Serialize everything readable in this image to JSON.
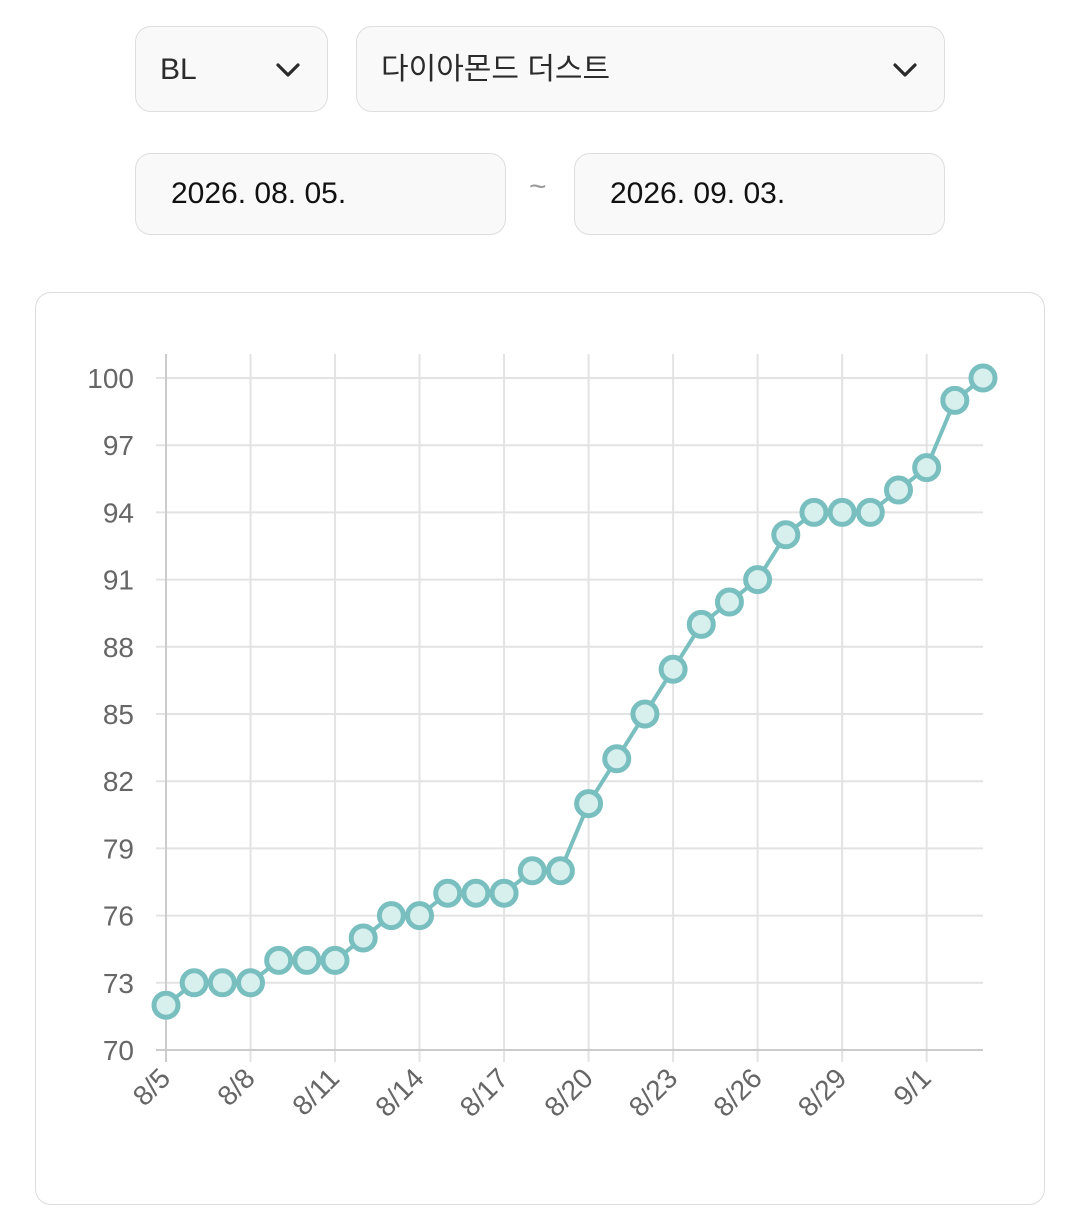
{
  "filters": {
    "category_value": "BL",
    "item_value": "다이아몬드 더스트",
    "start_date": "2026. 08. 05.",
    "end_date": "2026. 09. 03.",
    "range_separator": "~",
    "dropdown_icon": "chevron-down-icon"
  },
  "colors": {
    "series_line": "#7abfbf",
    "point_fill": "#d7f0ee",
    "grid": "#e3e3e3",
    "axis": "#cccccc",
    "tick_text": "#666666"
  },
  "chart_data": {
    "type": "line",
    "title": "",
    "xlabel": "",
    "ylabel": "",
    "x": [
      "8/5",
      "8/6",
      "8/7",
      "8/8",
      "8/9",
      "8/10",
      "8/11",
      "8/12",
      "8/13",
      "8/14",
      "8/15",
      "8/16",
      "8/17",
      "8/18",
      "8/19",
      "8/20",
      "8/21",
      "8/22",
      "8/23",
      "8/24",
      "8/25",
      "8/26",
      "8/27",
      "8/28",
      "8/29",
      "8/30",
      "8/31",
      "9/1",
      "9/2",
      "9/3"
    ],
    "x_tick_labels": [
      "8/5",
      "8/8",
      "8/11",
      "8/14",
      "8/17",
      "8/20",
      "8/23",
      "8/26",
      "8/29",
      "9/1"
    ],
    "series": [
      {
        "values": [
          72,
          73,
          73,
          73,
          74,
          74,
          74,
          75,
          76,
          76,
          77,
          77,
          77,
          78,
          78,
          81,
          83,
          85,
          87,
          89,
          90,
          91,
          93,
          94,
          94,
          94,
          95,
          96,
          99,
          100
        ]
      }
    ],
    "ylim": [
      70,
      100
    ],
    "y_ticks": [
      70,
      73,
      76,
      79,
      82,
      85,
      88,
      91,
      94,
      97,
      100
    ],
    "grid": true,
    "legend": "none"
  }
}
